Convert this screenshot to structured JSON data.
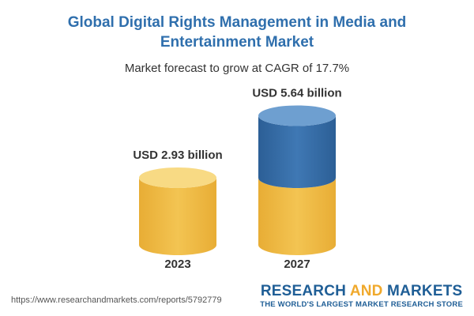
{
  "header": {
    "title": "Global Digital Rights Management in Media and Entertainment Market",
    "subtitle": "Market forecast to grow at CAGR of 17.7%"
  },
  "chart_data": {
    "type": "bar",
    "categories": [
      "2023",
      "2027"
    ],
    "values": [
      2.93,
      5.64
    ],
    "value_labels": [
      "USD 2.93 billion",
      "USD 5.64 billion"
    ],
    "unit": "USD billion",
    "colors": {
      "base": "#f3c452",
      "base_top": "#f8da84",
      "growth": "#3f78b4",
      "growth_top": "#6e9fd0"
    }
  },
  "footer": {
    "source_url": "https://www.researchandmarkets.com/reports/5792779",
    "brand_part1": "RESEARCH ",
    "brand_part2": "AND",
    "brand_part3": " MARKETS",
    "tagline": "THE WORLD'S LARGEST MARKET RESEARCH STORE"
  }
}
